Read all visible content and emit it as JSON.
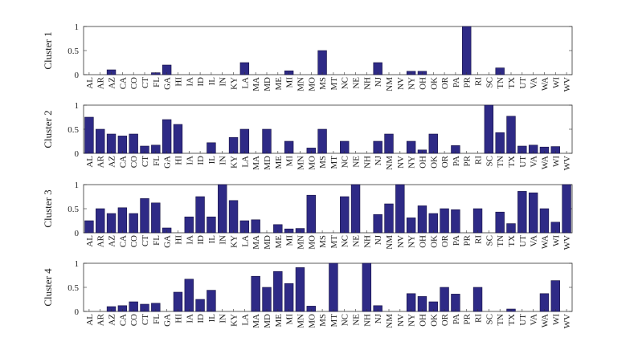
{
  "colors": {
    "bar_fill": "#2e2a86",
    "bar_stroke": "#151042",
    "axis": "#333333"
  },
  "chart_data": [
    {
      "type": "bar",
      "ylabel": "Cluster 1",
      "ylim": [
        0,
        1
      ],
      "yticks": [
        "0",
        "0.5",
        "1"
      ],
      "categories": [
        "AL",
        "AR",
        "AZ",
        "CA",
        "CO",
        "CT",
        "FL",
        "GA",
        "HI",
        "IA",
        "ID",
        "IL",
        "IN",
        "KY",
        "LA",
        "MA",
        "MD",
        "ME",
        "MI",
        "MN",
        "MO",
        "MS",
        "MT",
        "NC",
        "NE",
        "NH",
        "NJ",
        "NM",
        "NV",
        "NY",
        "OH",
        "OK",
        "OR",
        "PA",
        "PR",
        "RI",
        "SC",
        "TN",
        "TX",
        "UT",
        "VA",
        "WA",
        "WI",
        "WV"
      ],
      "values": [
        0,
        0,
        0.1,
        0,
        0,
        0,
        0.04,
        0.2,
        0,
        0,
        0,
        0,
        0,
        0,
        0.25,
        0,
        0,
        0,
        0.08,
        0,
        0,
        0.5,
        0,
        0,
        0,
        0,
        0.25,
        0,
        0,
        0.07,
        0.07,
        0,
        0,
        0,
        1.0,
        0,
        0,
        0.14,
        0,
        0,
        0,
        0,
        0,
        0
      ]
    },
    {
      "type": "bar",
      "ylabel": "Cluster 2",
      "ylim": [
        0,
        1
      ],
      "yticks": [
        "0",
        "0.5",
        "1"
      ],
      "categories": [
        "AL",
        "AR",
        "AZ",
        "CA",
        "CO",
        "CT",
        "FL",
        "GA",
        "HI",
        "IA",
        "ID",
        "IL",
        "IN",
        "KY",
        "LA",
        "MA",
        "MD",
        "ME",
        "MI",
        "MN",
        "MO",
        "MS",
        "MT",
        "NC",
        "NE",
        "NH",
        "NJ",
        "NM",
        "NV",
        "NY",
        "OH",
        "OK",
        "OR",
        "PA",
        "PR",
        "RI",
        "SC",
        "TN",
        "TX",
        "UT",
        "VA",
        "WA",
        "WI",
        "WV"
      ],
      "values": [
        0.75,
        0.5,
        0.4,
        0.36,
        0.4,
        0.15,
        0.17,
        0.7,
        0.6,
        0,
        0,
        0.22,
        0,
        0.33,
        0.5,
        0,
        0.5,
        0,
        0.25,
        0,
        0.11,
        0.5,
        0,
        0.25,
        0,
        0,
        0.25,
        0.4,
        0,
        0.25,
        0.07,
        0.4,
        0,
        0.16,
        0,
        0,
        1.0,
        0.43,
        0.77,
        0.15,
        0.17,
        0.13,
        0.14,
        0
      ]
    },
    {
      "type": "bar",
      "ylabel": "Cluster 3",
      "ylim": [
        0,
        1
      ],
      "yticks": [
        "0",
        "0.5",
        "1"
      ],
      "categories": [
        "AL",
        "AR",
        "AZ",
        "CA",
        "CO",
        "CT",
        "FL",
        "GA",
        "HI",
        "IA",
        "ID",
        "IL",
        "IN",
        "KY",
        "LA",
        "MA",
        "MD",
        "ME",
        "MI",
        "MN",
        "MO",
        "MS",
        "MT",
        "NC",
        "NE",
        "NH",
        "NJ",
        "NM",
        "NV",
        "NY",
        "OH",
        "OK",
        "OR",
        "PA",
        "PR",
        "RI",
        "SC",
        "TN",
        "TX",
        "UT",
        "VA",
        "WA",
        "WI",
        "WV"
      ],
      "values": [
        0.25,
        0.5,
        0.4,
        0.52,
        0.4,
        0.71,
        0.62,
        0.1,
        0,
        0.33,
        0.75,
        0.33,
        1.0,
        0.67,
        0.25,
        0.27,
        0,
        0.17,
        0.08,
        0.09,
        0.78,
        0,
        0,
        0.75,
        1.0,
        0,
        0.38,
        0.6,
        1.0,
        0.31,
        0.56,
        0.4,
        0.5,
        0.48,
        0,
        0.5,
        0,
        0.43,
        0.19,
        0.86,
        0.83,
        0.5,
        0.22,
        1.0
      ]
    },
    {
      "type": "bar",
      "ylabel": "Cluster 4",
      "ylim": [
        0,
        1
      ],
      "yticks": [
        "0",
        "0.5",
        "1"
      ],
      "categories": [
        "AL",
        "AR",
        "AZ",
        "CA",
        "CO",
        "CT",
        "FL",
        "GA",
        "HI",
        "IA",
        "ID",
        "IL",
        "IN",
        "KY",
        "LA",
        "MA",
        "MD",
        "ME",
        "MI",
        "MN",
        "MO",
        "MS",
        "MT",
        "NC",
        "NE",
        "NH",
        "NJ",
        "NM",
        "NV",
        "NY",
        "OH",
        "OK",
        "OR",
        "PA",
        "PR",
        "RI",
        "SC",
        "TN",
        "TX",
        "UT",
        "VA",
        "WA",
        "WI",
        "WV"
      ],
      "values": [
        0,
        0,
        0.1,
        0.12,
        0.2,
        0.15,
        0.17,
        0,
        0.4,
        0.67,
        0.25,
        0.44,
        0,
        0,
        0,
        0.73,
        0.5,
        0.83,
        0.58,
        0.91,
        0.11,
        0,
        1.0,
        0,
        0,
        1.0,
        0.12,
        0,
        0,
        0.37,
        0.31,
        0.2,
        0.5,
        0.36,
        0,
        0.5,
        0,
        0,
        0.05,
        0,
        0,
        0.37,
        0.64,
        0
      ]
    }
  ]
}
